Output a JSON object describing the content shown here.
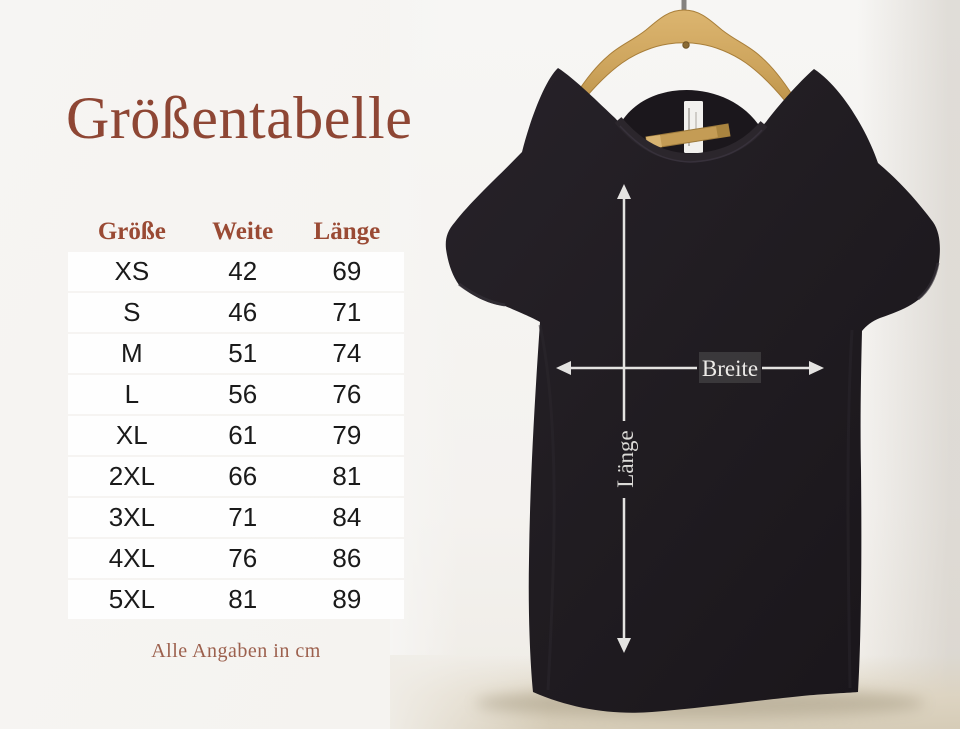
{
  "title": "Größentabelle",
  "table": {
    "headers": [
      "Größe",
      "Weite",
      "Länge"
    ],
    "rows": [
      [
        "XS",
        "42",
        "69"
      ],
      [
        "S",
        "46",
        "71"
      ],
      [
        "M",
        "51",
        "74"
      ],
      [
        "L",
        "56",
        "76"
      ],
      [
        "XL",
        "61",
        "79"
      ],
      [
        "2XL",
        "66",
        "81"
      ],
      [
        "3XL",
        "71",
        "84"
      ],
      [
        "4XL",
        "76",
        "86"
      ],
      [
        "5XL",
        "81",
        "89"
      ]
    ],
    "footnote": "Alle Angaben in cm"
  },
  "diagram": {
    "width_label": "Breite",
    "length_label": "Länge"
  },
  "colors": {
    "accent": "#8e4634",
    "header_text": "#9a4a34",
    "cell_text": "#1a1a1a",
    "row_bg": "#fefefe",
    "shirt": "#201c21",
    "hanger_wood": "#cda45c",
    "arrow": "#e4e3e1",
    "floor": "#d6ccb7"
  }
}
